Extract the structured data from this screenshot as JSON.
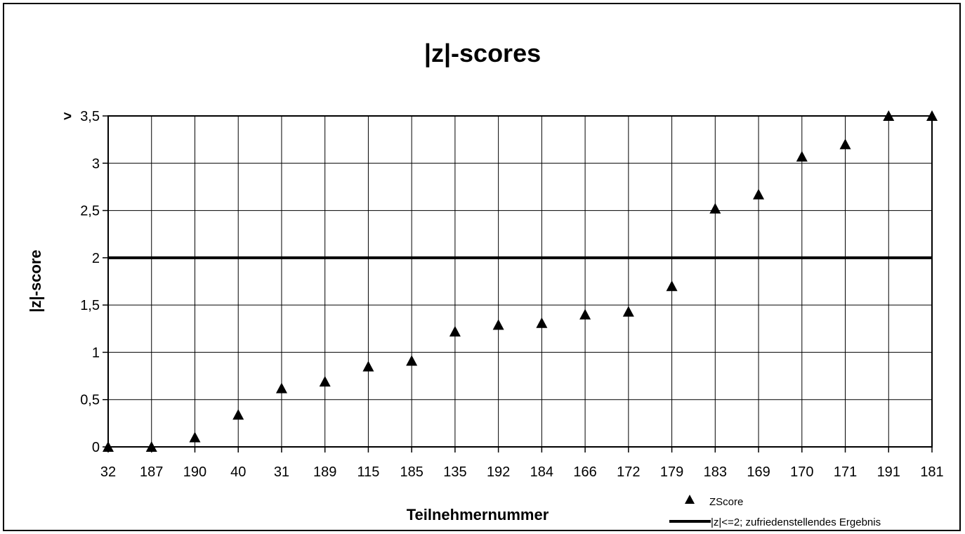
{
  "chart_data": {
    "type": "scatter",
    "title": "|z|-scores",
    "xlabel": "Teilnehmernummer",
    "ylabel": "|z|-score",
    "categories": [
      "32",
      "187",
      "190",
      "40",
      "31",
      "189",
      "115",
      "185",
      "135",
      "192",
      "184",
      "166",
      "172",
      "179",
      "183",
      "169",
      "170",
      "171",
      "191",
      "181"
    ],
    "series": [
      {
        "name": "ZScore",
        "marker": "triangle",
        "color": "#000000",
        "values": [
          0,
          0,
          0.1,
          0.34,
          0.62,
          0.69,
          0.85,
          0.91,
          1.22,
          1.29,
          1.31,
          1.4,
          1.43,
          1.7,
          2.52,
          2.67,
          3.07,
          3.2,
          3.5,
          3.5
        ]
      }
    ],
    "reference_line": {
      "name": "|z|<=2; zufriedenstellendes Ergebnis",
      "y": 2,
      "color": "#000000"
    },
    "ylim": [
      0,
      3.5
    ],
    "yticks": [
      "0",
      "0,5",
      "1",
      "1,5",
      "2",
      "2,5",
      "3",
      "3,5"
    ],
    "ytick_top_prefix": ">",
    "grid": true,
    "legend_position": "bottom-right"
  }
}
